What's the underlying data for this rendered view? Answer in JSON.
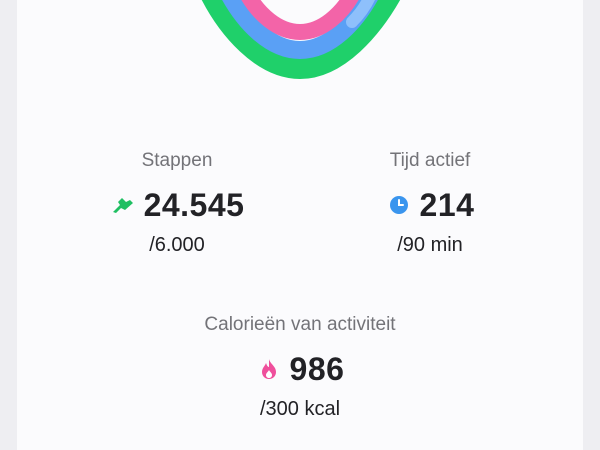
{
  "colors": {
    "steps_ring": "#1fd06a",
    "active_ring": "#5aa0f5",
    "calories_ring": "#f364a8",
    "steps_icon": "#1fbf62",
    "active_icon": "#3a95ee",
    "calories_icon": "#ef4f9c"
  },
  "stats": {
    "steps": {
      "label": "Stappen",
      "icon": "shoe-icon",
      "value": "24.545",
      "goal": "/6.000"
    },
    "active_time": {
      "label": "Tijd actief",
      "icon": "clock-icon",
      "value": "214",
      "goal": "/90 min"
    },
    "calories": {
      "label": "Calorieën van activiteit",
      "icon": "flame-icon",
      "value": "986",
      "goal": "/300 kcal"
    }
  }
}
